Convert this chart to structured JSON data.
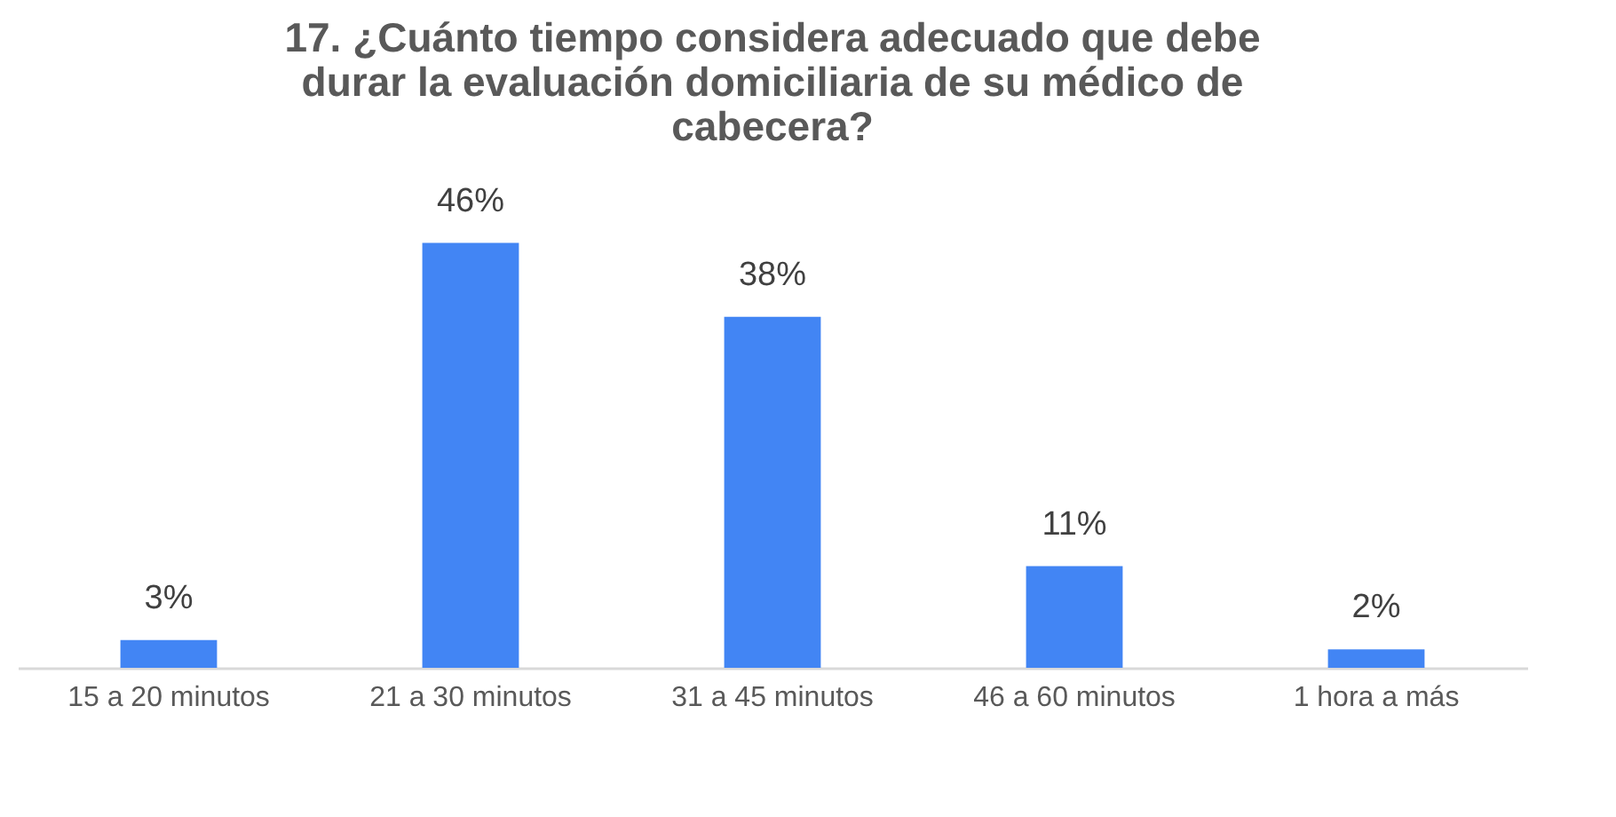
{
  "chart_data": {
    "type": "bar",
    "title": "17. ¿Cuánto tiempo considera adecuado que debe durar la evaluación domiciliaria de su médico de cabecera?",
    "categories": [
      "15 a 20 minutos",
      "21 a 30 minutos",
      "31 a 45 minutos",
      "46 a 60 minutos",
      "1 hora a más"
    ],
    "values": [
      3,
      46,
      38,
      11,
      2
    ],
    "value_labels": [
      "3%",
      "46%",
      "38%",
      "11%",
      "2%"
    ],
    "color": "#4285f4",
    "grid": false
  }
}
